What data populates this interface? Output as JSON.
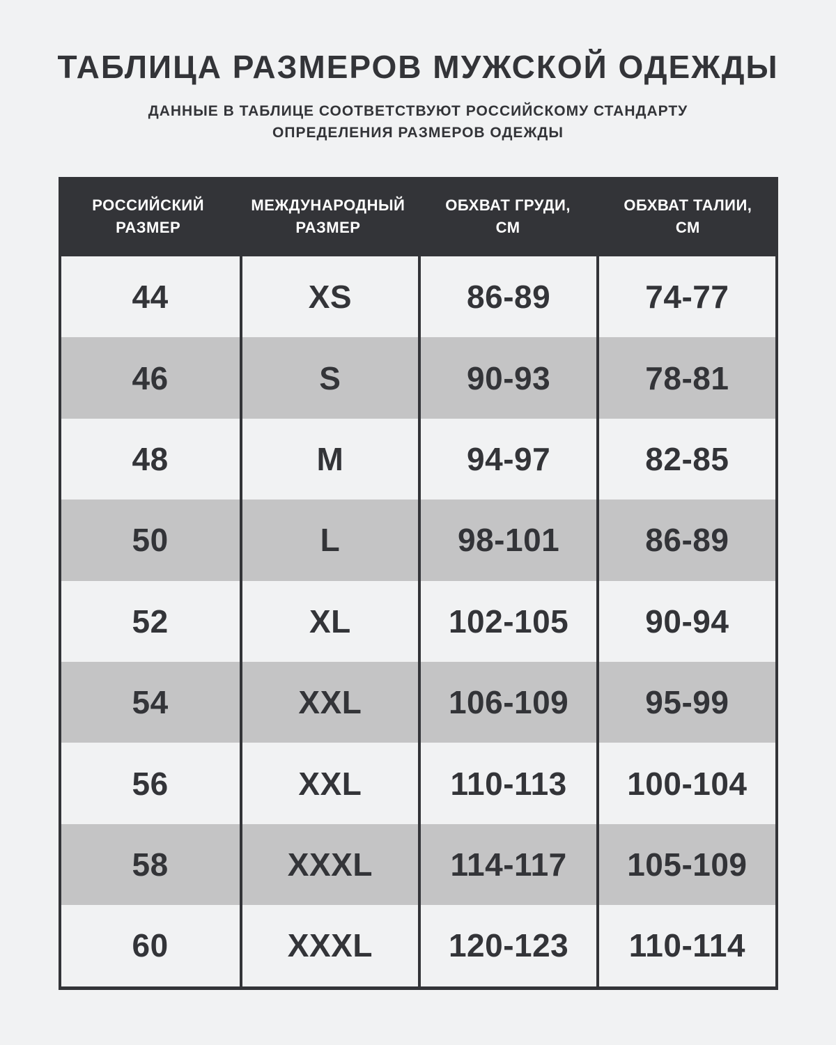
{
  "page": {
    "title": "ТАБЛИЦА РАЗМЕРОВ МУЖСКОЙ ОДЕЖДЫ",
    "subtitle_line1": "ДАННЫЕ В ТАБЛИЦЕ СООТВЕТСТВУЮТ РОССИЙСКОМУ СТАНДАРТУ",
    "subtitle_line2": "ОПРЕДЕЛЕНИЯ РАЗМЕРОВ ОДЕЖДЫ"
  },
  "display_headers": [
    {
      "line1": "РОССИЙСКИЙ",
      "line2": "РАЗМЕР"
    },
    {
      "line1": "МЕЖДУНАРОДНЫЙ",
      "line2": "РАЗМЕР"
    },
    {
      "line1": "ОБХВАТ ГРУДИ,",
      "line2": "СМ"
    },
    {
      "line1": "ОБХВАТ ТАЛИИ,",
      "line2": "СМ"
    }
  ],
  "chart_data": {
    "type": "table",
    "title": "ТАБЛИЦА РАЗМЕРОВ МУЖСКОЙ ОДЕЖДЫ",
    "subtitle": "ДАННЫЕ В ТАБЛИЦЕ СООТВЕТСТВУЮТ РОССИЙСКОМУ СТАНДАРТУ ОПРЕДЕЛЕНИЯ РАЗМЕРОВ ОДЕЖДЫ",
    "columns": [
      "РОССИЙСКИЙ РАЗМЕР",
      "МЕЖДУНАРОДНЫЙ РАЗМЕР",
      "ОБХВАТ ГРУДИ, СМ",
      "ОБХВАТ ТАЛИИ, СМ"
    ],
    "rows": [
      [
        "44",
        "XS",
        "86-89",
        "74-77"
      ],
      [
        "46",
        "S",
        "90-93",
        "78-81"
      ],
      [
        "48",
        "M",
        "94-97",
        "82-85"
      ],
      [
        "50",
        "L",
        "98-101",
        "86-89"
      ],
      [
        "52",
        "XL",
        "102-105",
        "90-94"
      ],
      [
        "54",
        "XXL",
        "106-109",
        "95-99"
      ],
      [
        "56",
        "XXL",
        "110-113",
        "100-104"
      ],
      [
        "58",
        "XXXL",
        "114-117",
        "105-109"
      ],
      [
        "60",
        "XXXL",
        "120-123",
        "110-114"
      ]
    ]
  },
  "colors": {
    "background": "#f1f2f3",
    "dark": "#333438",
    "row_alt": "#c4c4c5",
    "header_text": "#ffffff"
  }
}
